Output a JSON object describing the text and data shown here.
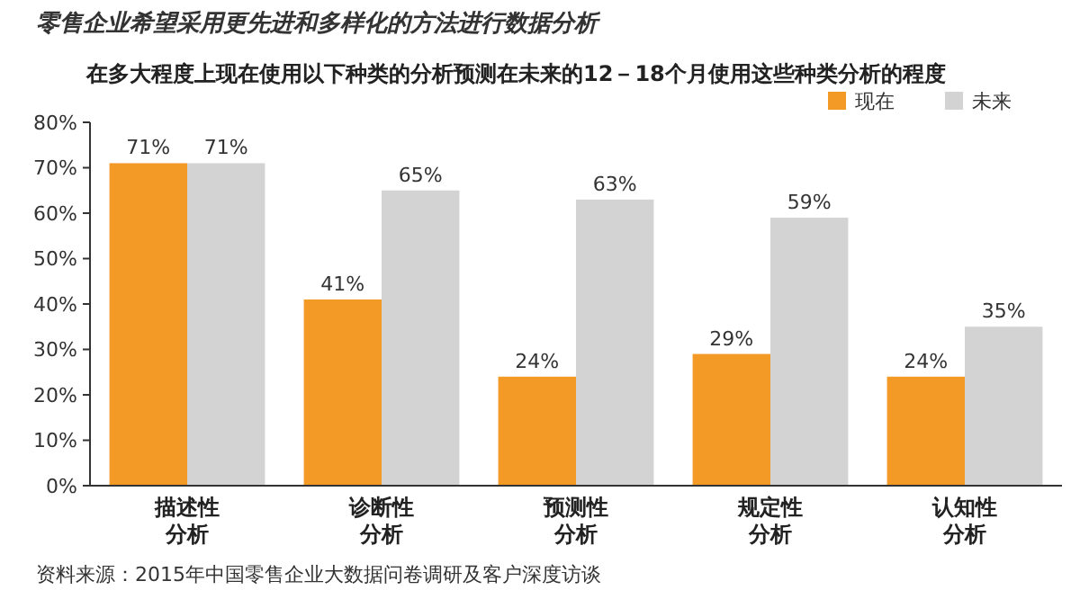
{
  "chart_data": {
    "type": "bar",
    "title": "零售企业希望采用更先进和多样化的方法进行数据分析",
    "subtitle": "在多大程度上现在使用以下种类的分析预测在未来的12－18个月使用这些种类分析的程度",
    "categories": [
      "描述性分析",
      "诊断性分析",
      "预测性分析",
      "规定性分析",
      "认知性分析"
    ],
    "series": [
      {
        "name": "现在",
        "color": "#f39a26",
        "values": [
          71,
          41,
          24,
          29,
          24
        ],
        "value_labels": [
          "71%",
          "41%",
          "24%",
          "29%",
          "24%"
        ]
      },
      {
        "name": "未来",
        "color": "#d3d3d3",
        "values": [
          71,
          65,
          63,
          59,
          35
        ],
        "value_labels": [
          "71%",
          "65%",
          "63%",
          "59%",
          "35%"
        ]
      }
    ],
    "ylim": [
      0,
      80
    ],
    "yticks": [
      {
        "value": 0,
        "label": "0%"
      },
      {
        "value": 10,
        "label": "10%"
      },
      {
        "value": 20,
        "label": "20%"
      },
      {
        "value": 30,
        "label": "30%"
      },
      {
        "value": 40,
        "label": "40%"
      },
      {
        "value": 50,
        "label": "50%"
      },
      {
        "value": 60,
        "label": "60%"
      },
      {
        "value": 70,
        "label": "70%"
      },
      {
        "value": 80,
        "label": "80%"
      }
    ],
    "legend": "top right",
    "annotations": [
      "资料来源：2015年中国零售企业大数据问卷调研及客户深度访谈"
    ]
  }
}
